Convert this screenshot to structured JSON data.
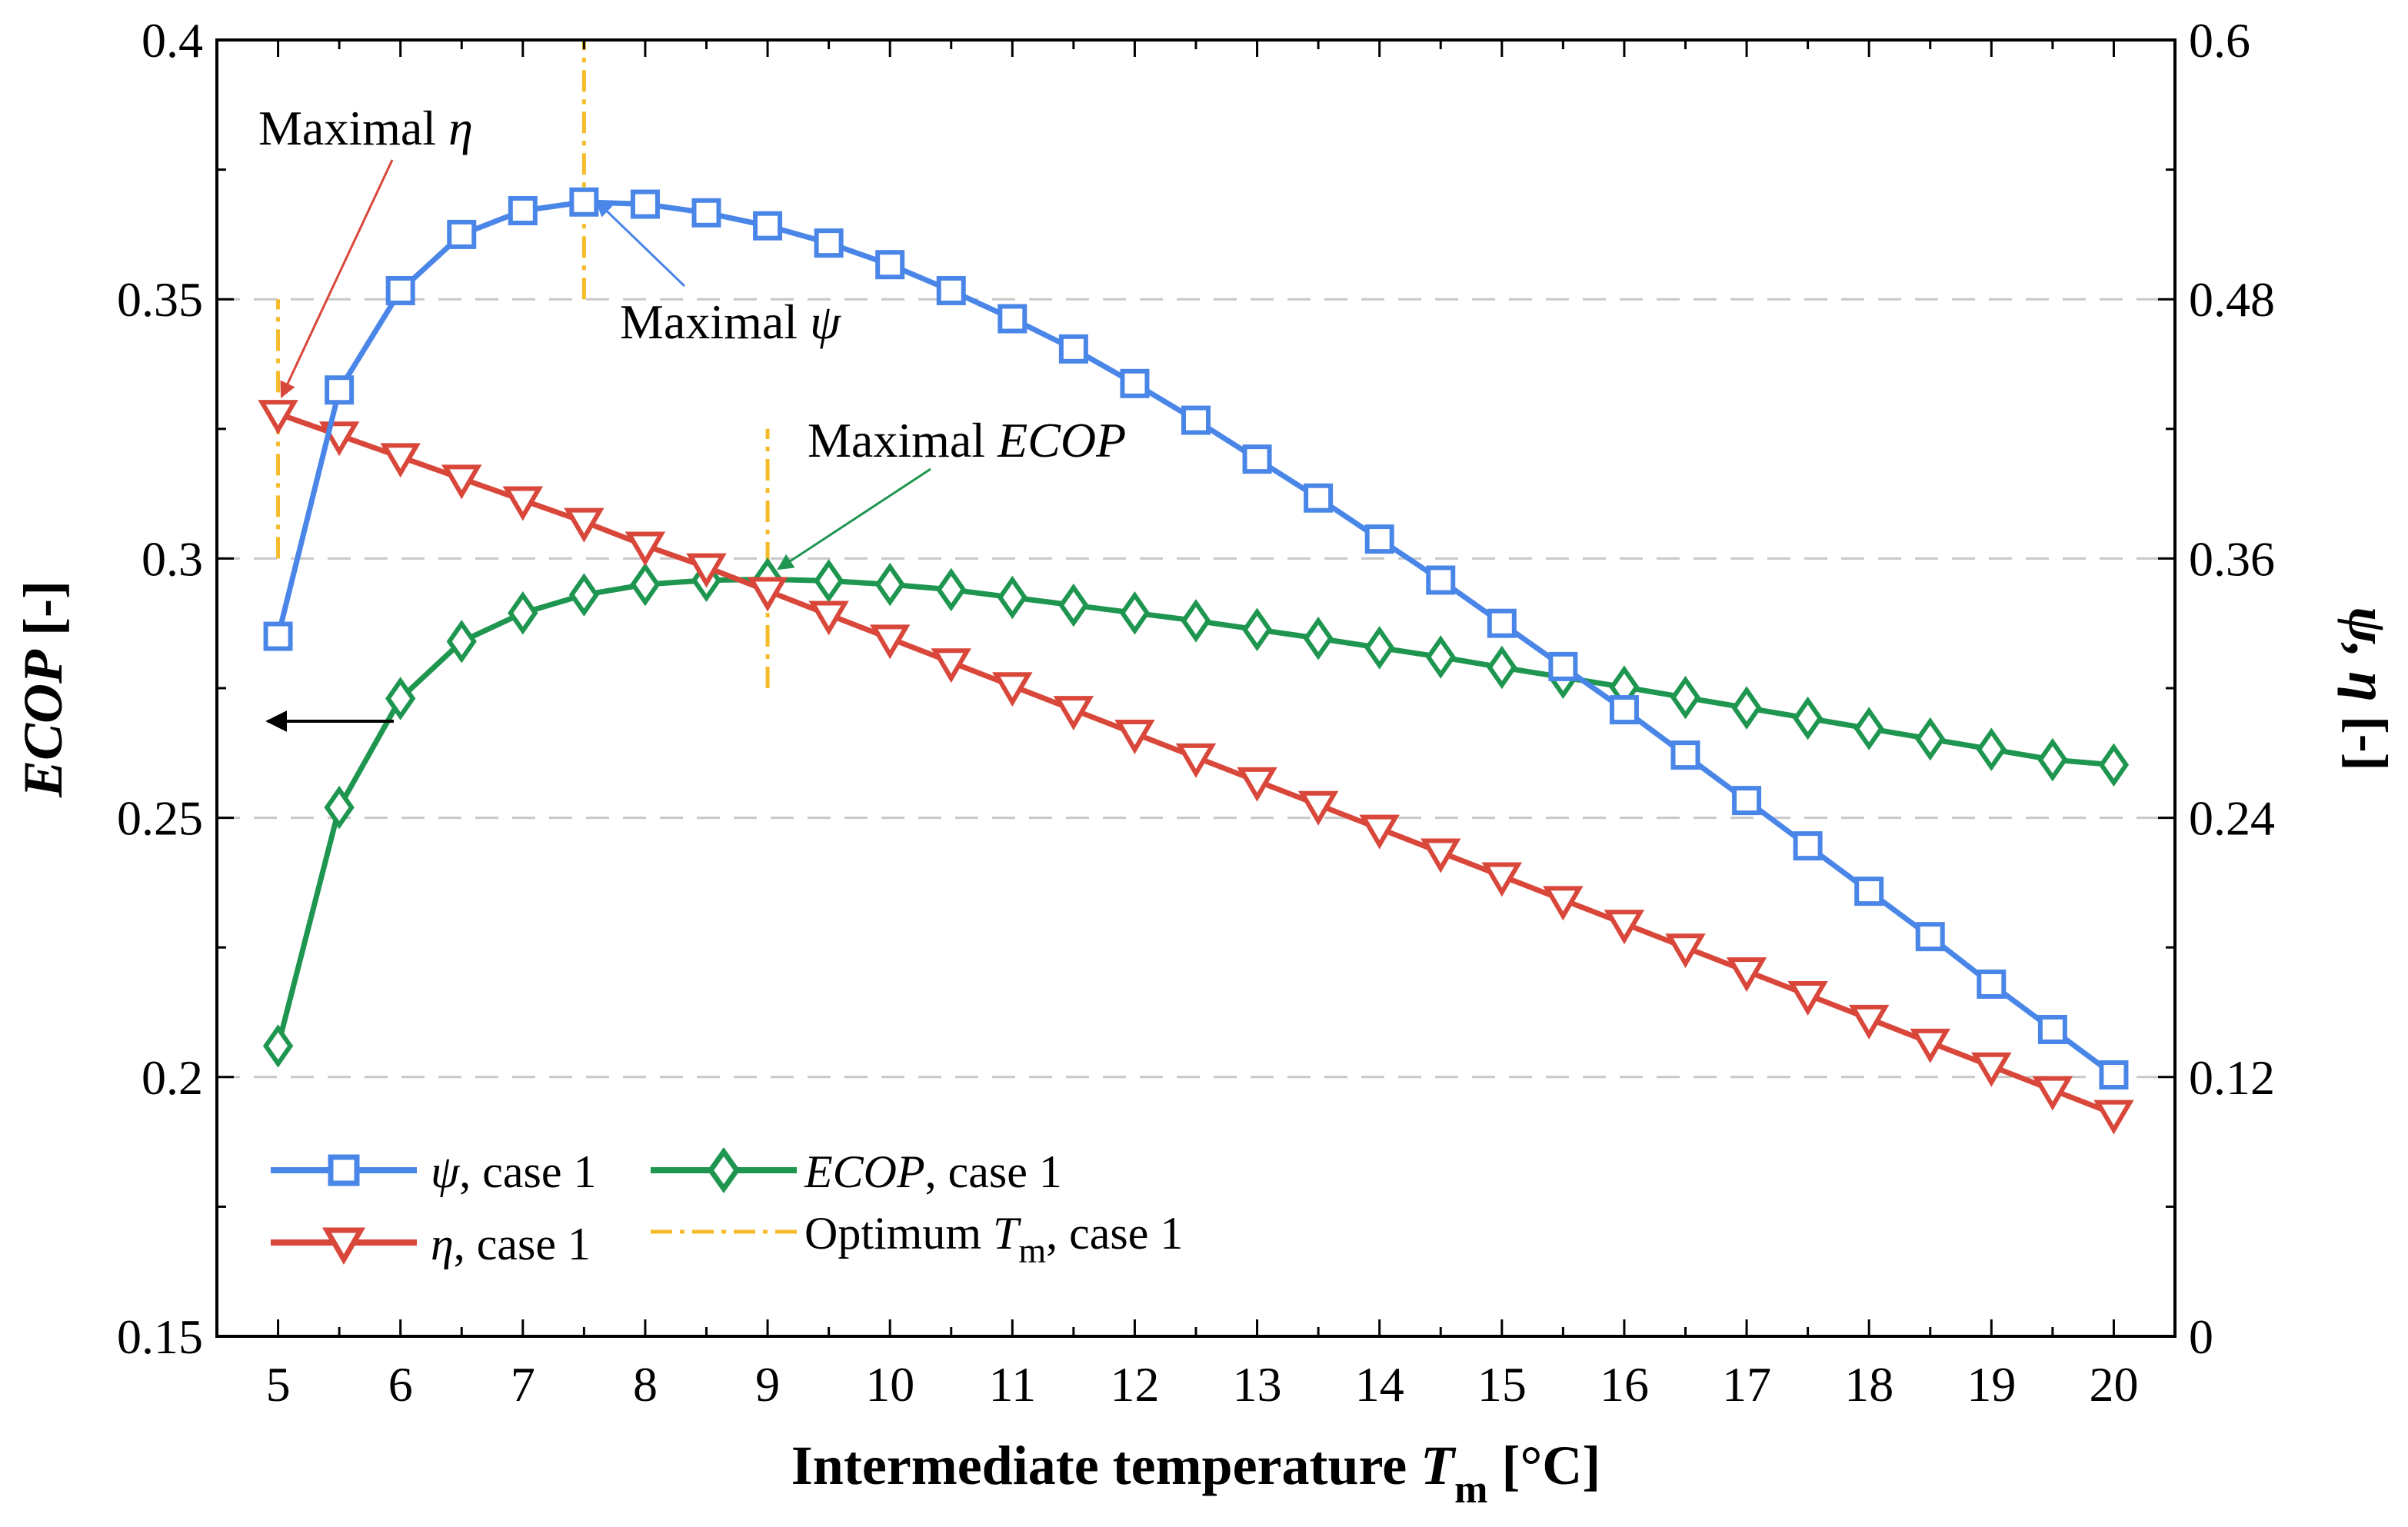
{
  "chart_data": {
    "type": "line",
    "title": "",
    "xlabel": {
      "main": "Intermediate temperature",
      "var": "T",
      "sub": "m",
      "unit": "[°C]"
    },
    "ylabel_left": {
      "var": "ECOP",
      "unit": "[-]"
    },
    "ylabel_right": {
      "var": "ψ, η",
      "unit": "[-]"
    },
    "xlim": [
      4.5,
      20.5
    ],
    "ylim_left": [
      0.15,
      0.4
    ],
    "ylim_right": [
      0,
      0.6
    ],
    "x_ticks": [
      5,
      6,
      7,
      8,
      9,
      10,
      11,
      12,
      13,
      14,
      15,
      16,
      17,
      18,
      19,
      20
    ],
    "x_tick_labels": [
      "5",
      "6",
      "7",
      "8",
      "9",
      "10",
      "11",
      "12",
      "13",
      "14",
      "15",
      "16",
      "17",
      "18",
      "19",
      "20"
    ],
    "left_ticks": [
      0.15,
      0.2,
      0.25,
      0.3,
      0.35,
      0.4
    ],
    "left_tick_labels": [
      "0.15",
      "0.2",
      "0.25",
      "0.3",
      "0.35",
      "0.4"
    ],
    "right_ticks": [
      0,
      0.12,
      0.24,
      0.36,
      0.48,
      0.6
    ],
    "right_tick_labels": [
      "0",
      "0.12",
      "0.24",
      "0.36",
      "0.48",
      "0.6"
    ],
    "gridlines_left": [
      0.2,
      0.25,
      0.3,
      0.35
    ],
    "x": [
      5,
      5.5,
      6,
      6.5,
      7,
      7.5,
      8,
      8.5,
      9,
      9.5,
      10,
      10.5,
      11,
      11.5,
      12,
      12.5,
      13,
      13.5,
      14,
      14.5,
      15,
      15.5,
      16,
      16.5,
      17,
      17.5,
      18,
      18.5,
      19,
      19.5,
      20
    ],
    "series": [
      {
        "name": "ψ",
        "legend_var": "ψ",
        "legend_suffix": ", case 1",
        "axis": "right",
        "color": "#4a86e8",
        "marker": "square",
        "values": [
          0.324,
          0.438,
          0.484,
          0.51,
          0.521,
          0.525,
          0.524,
          0.52,
          0.514,
          0.506,
          0.496,
          0.484,
          0.471,
          0.457,
          0.441,
          0.424,
          0.406,
          0.388,
          0.369,
          0.35,
          0.33,
          0.31,
          0.29,
          0.269,
          0.248,
          0.227,
          0.206,
          0.185,
          0.163,
          0.142,
          0.121
        ]
      },
      {
        "name": "η",
        "legend_var": "η",
        "legend_suffix": ", case 1",
        "axis": "right",
        "color": "#d9473b",
        "marker": "triangle-down",
        "values": [
          0.427,
          0.417,
          0.407,
          0.397,
          0.387,
          0.377,
          0.366,
          0.356,
          0.345,
          0.334,
          0.323,
          0.312,
          0.301,
          0.29,
          0.279,
          0.268,
          0.257,
          0.246,
          0.235,
          0.224,
          0.213,
          0.202,
          0.191,
          0.18,
          0.169,
          0.158,
          0.147,
          0.136,
          0.125,
          0.114,
          0.103
        ]
      },
      {
        "name": "ECOP",
        "legend_var": "ECOP",
        "legend_suffix": ", case 1",
        "axis": "left",
        "color": "#1e9650",
        "marker": "diamond",
        "values": [
          0.206,
          0.252,
          0.273,
          0.284,
          0.2895,
          0.293,
          0.295,
          0.2958,
          0.296,
          0.2957,
          0.295,
          0.294,
          0.2925,
          0.291,
          0.2895,
          0.288,
          0.2863,
          0.2846,
          0.2828,
          0.281,
          0.279,
          0.2771,
          0.2752,
          0.2732,
          0.2712,
          0.2692,
          0.2672,
          0.2652,
          0.2632,
          0.2612,
          0.2602
        ]
      }
    ],
    "optimum_lines": {
      "name": "Optimum",
      "legend_var": "T",
      "legend_sub": "m",
      "legend_suffix": ", case 1",
      "color": "#f5bb2a",
      "lines": [
        {
          "x": 5,
          "from": 0.3,
          "to": 0.35
        },
        {
          "x": 7.5,
          "from": 0.35,
          "to": 0.4
        },
        {
          "x": 9,
          "from": 0.275,
          "to": 0.325
        }
      ]
    },
    "annotations": [
      {
        "text": "Maximal ",
        "var": "η",
        "color": "#d9473b",
        "target_series": "η",
        "target_x": 5
      },
      {
        "text": "Maximal ",
        "var": "ψ",
        "color": "#4a86e8",
        "target_series": "ψ",
        "target_x": 7.5
      },
      {
        "text": "Maximal ",
        "var": "ECOP",
        "color": "#1e9650",
        "target_series": "ECOP",
        "target_x": 9
      }
    ],
    "axis_arrow": {
      "points_to": "left",
      "color": "#000000",
      "y_value": 0.268
    }
  }
}
